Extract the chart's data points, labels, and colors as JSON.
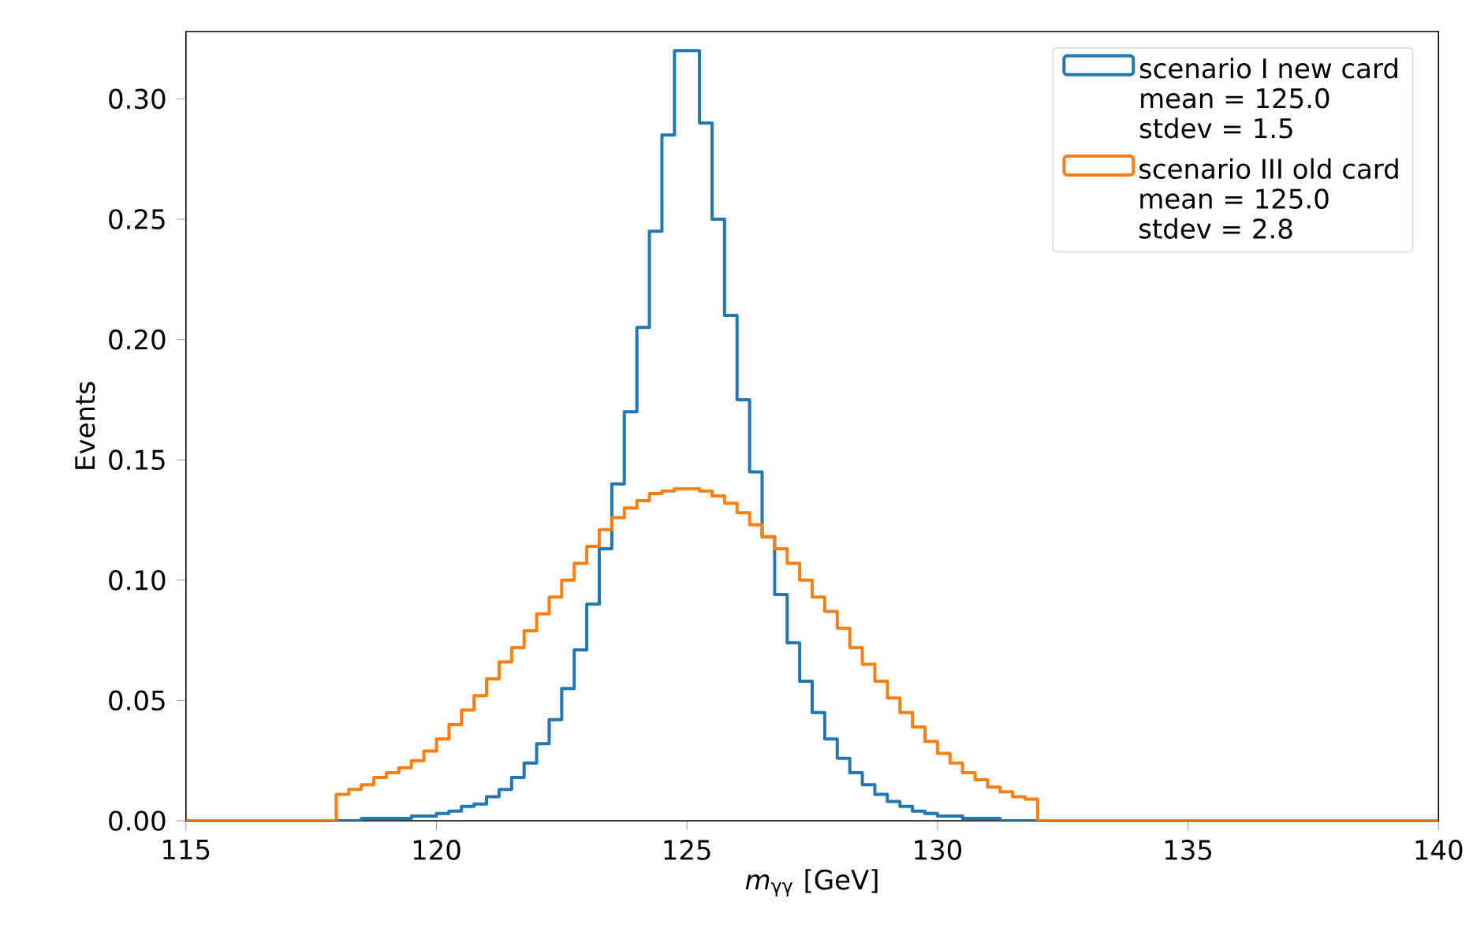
{
  "chart_data": {
    "type": "histogram",
    "xlabel": "*m*$_{γγ}$ [GeV]",
    "ylabel": "Events",
    "bins": [
      115,
      118,
      118.25,
      118.5,
      118.75,
      119,
      119.25,
      119.5,
      119.75,
      120,
      120.25,
      120.5,
      120.75,
      121,
      121.25,
      121.5,
      121.75,
      122,
      122.25,
      122.5,
      122.75,
      123,
      123.25,
      123.5,
      123.75,
      124,
      124.25,
      124.5,
      124.75,
      125,
      125.25,
      125.5,
      125.75,
      126,
      126.25,
      126.5,
      126.75,
      127,
      127.25,
      127.5,
      127.75,
      128,
      128.25,
      128.5,
      128.75,
      129,
      129.25,
      129.5,
      129.75,
      130,
      130.25,
      130.5,
      130.75,
      131,
      131.25,
      131.5,
      131.75,
      132,
      140
    ],
    "series": [
      {
        "name": "scenario I new card",
        "color": "#1f77b4",
        "values": [
          0,
          0,
          0,
          0.001,
          0.001,
          0.001,
          0.001,
          0.002,
          0.002,
          0.003,
          0.004,
          0.006,
          0.007,
          0.01,
          0.013,
          0.018,
          0.024,
          0.032,
          0.042,
          0.055,
          0.071,
          0.09,
          0.113,
          0.14,
          0.17,
          0.205,
          0.245,
          0.285,
          0.32,
          0.32,
          0.29,
          0.25,
          0.21,
          0.175,
          0.145,
          0.118,
          0.094,
          0.074,
          0.058,
          0.045,
          0.034,
          0.026,
          0.02,
          0.015,
          0.011,
          0.008,
          0.006,
          0.004,
          0.003,
          0.002,
          0.002,
          0.001,
          0.001,
          0.001,
          0,
          0,
          0,
          0
        ]
      },
      {
        "name": "scenario III old card",
        "color": "#ff7f0e",
        "values": [
          0,
          0.011,
          0.013,
          0.015,
          0.018,
          0.02,
          0.022,
          0.025,
          0.029,
          0.034,
          0.04,
          0.046,
          0.052,
          0.059,
          0.066,
          0.072,
          0.079,
          0.086,
          0.093,
          0.1,
          0.107,
          0.114,
          0.121,
          0.126,
          0.13,
          0.133,
          0.136,
          0.137,
          0.138,
          0.138,
          0.137,
          0.135,
          0.132,
          0.128,
          0.123,
          0.118,
          0.113,
          0.107,
          0.1,
          0.093,
          0.087,
          0.08,
          0.072,
          0.065,
          0.058,
          0.051,
          0.045,
          0.039,
          0.033,
          0.028,
          0.024,
          0.02,
          0.017,
          0.014,
          0.012,
          0.01,
          0.009,
          0
        ]
      }
    ],
    "annotations": [
      "mean = 125.0",
      "stdev = 1.5",
      "mean = 125.0",
      "stdev = 2.8"
    ],
    "xlim": [
      115,
      140
    ],
    "ylim": [
      0,
      0.328
    ],
    "xticks": [
      115,
      120,
      125,
      130,
      135,
      140
    ],
    "yticks": [
      {
        "value": 0,
        "label": "0.00"
      },
      {
        "value": 0.05,
        "label": "0.05"
      },
      {
        "value": 0.1,
        "label": "0.10"
      },
      {
        "value": 0.15,
        "label": "0.15"
      },
      {
        "value": 0.2,
        "label": "0.20"
      },
      {
        "value": 0.25,
        "label": "0.25"
      },
      {
        "value": 0.3,
        "label": "0.30"
      }
    ],
    "grid": false,
    "legend": "top right"
  }
}
